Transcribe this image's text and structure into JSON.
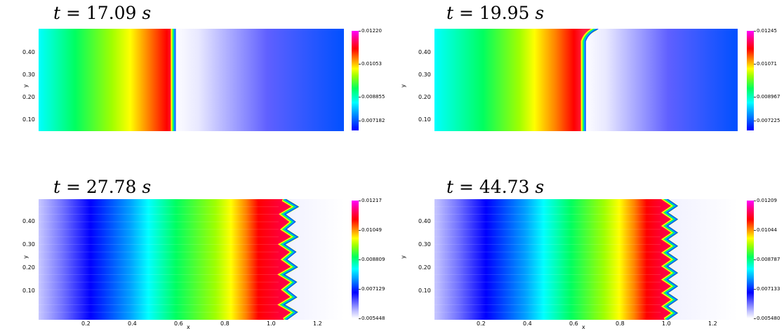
{
  "panels": [
    {
      "title_prefix": "t = ",
      "time": "17.09",
      "unit": "s",
      "colorbar_labels": [
        "0.01220",
        "0.01053",
        "0.008855",
        "0.007182"
      ],
      "y_ticks": [
        "0.40",
        "0.30",
        "0.20",
        "0.10"
      ],
      "y_label": "y",
      "x_ticks": [],
      "x_label": "",
      "style": "cold-plane"
    },
    {
      "title_prefix": "t = ",
      "time": "19.95",
      "unit": "s",
      "colorbar_labels": [
        "0.01245",
        "0.01071",
        "0.008967",
        "0.007225"
      ],
      "y_ticks": [
        "0.40",
        "0.30",
        "0.20",
        "0.10"
      ],
      "y_label": "y",
      "x_ticks": [],
      "x_label": "",
      "style": "plane-bulge"
    },
    {
      "title_prefix": "t = ",
      "time": "27.78",
      "unit": "s",
      "colorbar_labels": [
        "0.01217",
        "0.01049",
        "0.008809",
        "0.007129",
        "0.005448"
      ],
      "y_ticks": [
        "0.40",
        "0.30",
        "0.20",
        "0.10"
      ],
      "y_label": "y",
      "x_ticks": [
        "0.2",
        "0.4",
        "0.6",
        "0.8",
        "1.0",
        "1.2"
      ],
      "x_label": "x",
      "style": "cellular"
    },
    {
      "title_prefix": "t = ",
      "time": "44.73",
      "unit": "s",
      "colorbar_labels": [
        "0.01209",
        "0.01044",
        "0.008787",
        "0.007133",
        "0.005480"
      ],
      "y_ticks": [
        "0.40",
        "0.30",
        "0.20",
        "0.10"
      ],
      "y_label": "y",
      "x_ticks": [
        "0.2",
        "0.4",
        "0.6",
        "0.8",
        "1.0",
        "1.2"
      ],
      "x_label": "x",
      "style": "cellular"
    }
  ]
}
